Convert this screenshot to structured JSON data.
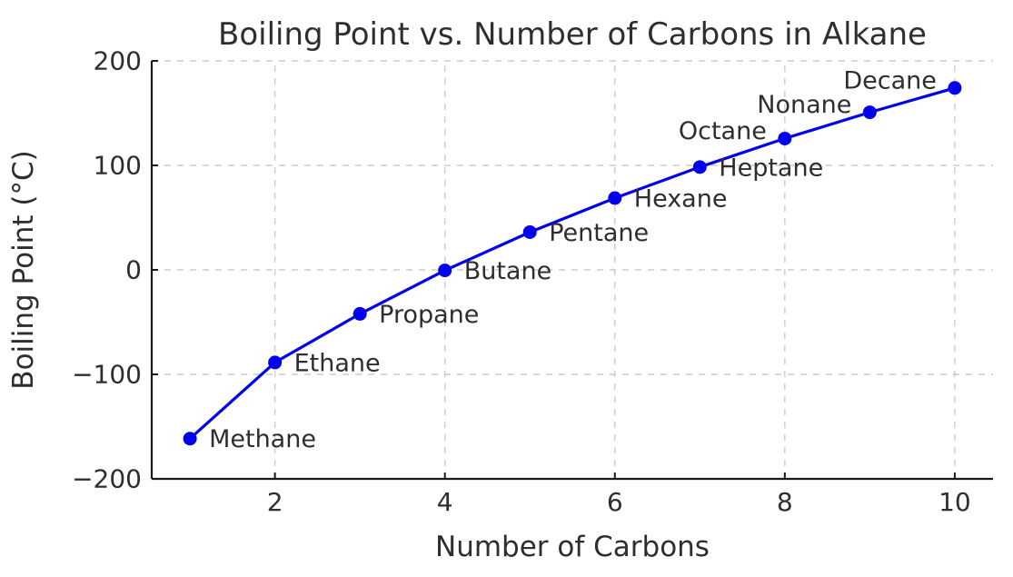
{
  "figure": {
    "background": "#ffffff"
  },
  "chart_data": {
    "type": "line",
    "title": "Boiling Point vs. Number of Carbons in Alkane",
    "xlabel": "Number of Carbons",
    "ylabel": "Boiling Point (°C)",
    "xlim": [
      0.55,
      10.45
    ],
    "ylim": [
      -200,
      200
    ],
    "xticks": [
      2,
      4,
      6,
      8,
      10
    ],
    "xtick_labels": [
      "2",
      "4",
      "6",
      "8",
      "10"
    ],
    "yticks": [
      -200,
      -100,
      0,
      100,
      200
    ],
    "ytick_labels": [
      "−200",
      "−100",
      "0",
      "100",
      "200"
    ],
    "grid": "dashed",
    "legend": "none",
    "colors": {
      "line": "#0000ee",
      "marker": "#0000ee",
      "grid": "#cccccc",
      "spine": "#1a1a1a",
      "text": "#2e2e2e"
    },
    "points": [
      {
        "x": 1,
        "y": -161.5,
        "label": "Methane",
        "label_side": "right"
      },
      {
        "x": 2,
        "y": -88.6,
        "label": "Ethane",
        "label_side": "right"
      },
      {
        "x": 3,
        "y": -42.1,
        "label": "Propane",
        "label_side": "right"
      },
      {
        "x": 4,
        "y": -0.5,
        "label": "Butane",
        "label_side": "right"
      },
      {
        "x": 5,
        "y": 36.1,
        "label": "Pentane",
        "label_side": "right"
      },
      {
        "x": 6,
        "y": 68.7,
        "label": "Hexane",
        "label_side": "right"
      },
      {
        "x": 7,
        "y": 98.4,
        "label": "Heptane",
        "label_side": "right"
      },
      {
        "x": 8,
        "y": 125.7,
        "label": "Octane",
        "label_side": "left-above"
      },
      {
        "x": 9,
        "y": 150.8,
        "label": "Nonane",
        "label_side": "left-above"
      },
      {
        "x": 10,
        "y": 174.1,
        "label": "Decane",
        "label_side": "left-above"
      }
    ]
  }
}
